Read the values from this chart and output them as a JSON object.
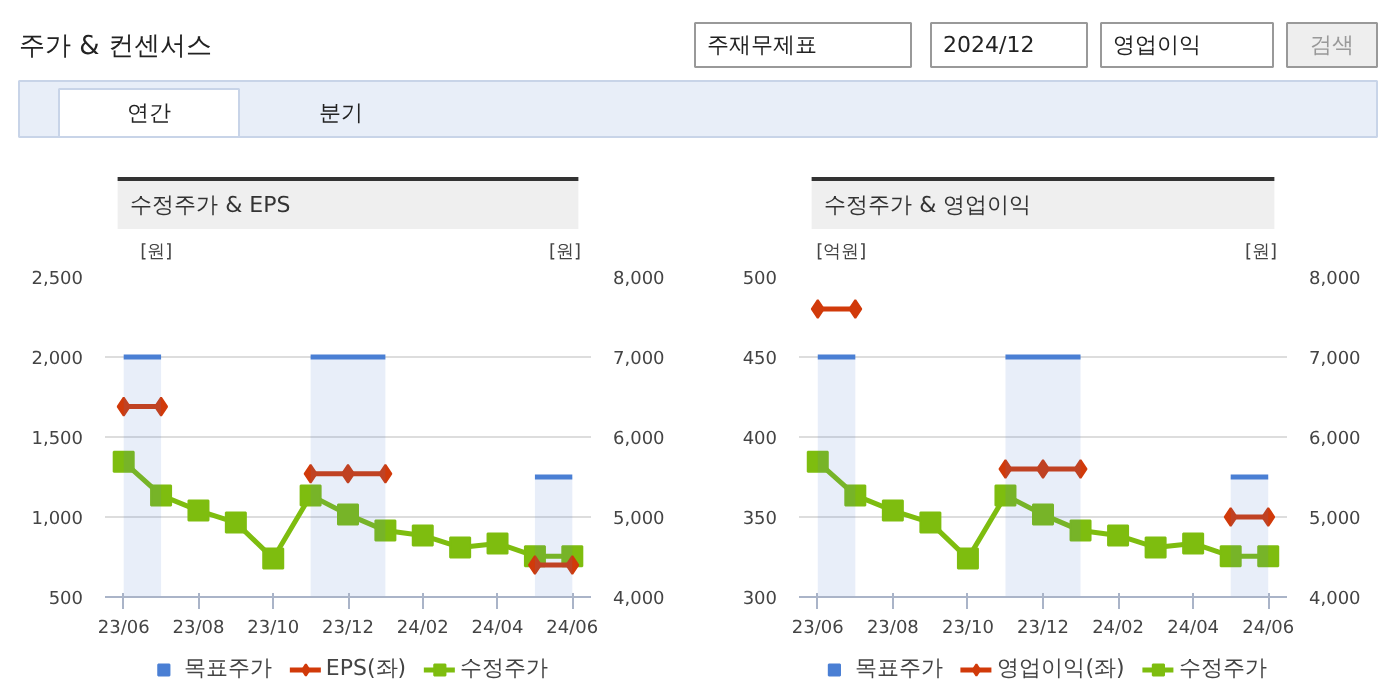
{
  "chart_data": [
    {
      "type": "other",
      "title": "주가 & 컨센서스",
      "annotations": [
        "주재무제표",
        "2024/12",
        "영업이익",
        "검색",
        "연간",
        "분기"
      ]
    },
    {
      "type": "line",
      "title": "수정주가 & EPS",
      "ylabel": "[원]",
      "y2label": "[원]",
      "categories": [
        "23/06",
        null,
        "23/08",
        null,
        "23/10",
        null,
        "23/12",
        null,
        "24/02",
        null,
        "24/04",
        null,
        "24/06"
      ],
      "ylim": [
        500,
        2500
      ],
      "yticks": [
        {
          "value": 500,
          "label": "500"
        },
        {
          "value": 1000,
          "label": "1,000"
        },
        {
          "value": 1500,
          "label": "1,500"
        },
        {
          "value": 2000,
          "label": "2,000"
        },
        {
          "value": 2500,
          "label": "2,500"
        }
      ],
      "y2lim": [
        4000,
        8000
      ],
      "y2ticks": [
        {
          "value": 4000,
          "label": "4,000"
        },
        {
          "value": 5000,
          "label": "5,000"
        },
        {
          "value": 6000,
          "label": "6,000"
        },
        {
          "value": 7000,
          "label": "7,000"
        },
        {
          "value": 8000,
          "label": "8,000"
        }
      ],
      "grid": "y",
      "legend": "bottom",
      "series": [
        {
          "name": "목표주가",
          "type": "area",
          "axis": "y2",
          "color": "#4a7fd4",
          "values": [
            7000,
            7000,
            null,
            null,
            null,
            7000,
            7000,
            7000,
            null,
            null,
            null,
            5500,
            5500
          ]
        },
        {
          "name": "EPS(좌)",
          "type": "line",
          "color": "#d13a0a",
          "marker": "diamond",
          "values": [
            1690,
            1690,
            null,
            null,
            null,
            1270,
            1270,
            1270,
            null,
            null,
            null,
            700,
            700
          ]
        },
        {
          "name": "수정주가",
          "type": "line",
          "axis": "y2",
          "color": "#7ebd0f",
          "marker": "square",
          "values": [
            5690,
            5270,
            5080,
            4930,
            4480,
            5270,
            5030,
            4830,
            4770,
            4620,
            4670,
            4510,
            4510
          ]
        }
      ]
    },
    {
      "type": "line",
      "title": "수정주가 & 영업이익",
      "ylabel": "[억원]",
      "y2label": "[원]",
      "categories": [
        "23/06",
        null,
        "23/08",
        null,
        "23/10",
        null,
        "23/12",
        null,
        "24/02",
        null,
        "24/04",
        null,
        "24/06"
      ],
      "ylim": [
        300,
        500
      ],
      "yticks": [
        300,
        350,
        400,
        450,
        500
      ],
      "y2lim": [
        4000,
        8000
      ],
      "y2ticks": [
        {
          "value": 4000,
          "label": "4,000"
        },
        {
          "value": 5000,
          "label": "5,000"
        },
        {
          "value": 6000,
          "label": "6,000"
        },
        {
          "value": 7000,
          "label": "7,000"
        },
        {
          "value": 8000,
          "label": "8,000"
        }
      ],
      "grid": "y",
      "legend": "bottom",
      "series": [
        {
          "name": "목표주가",
          "type": "area",
          "axis": "y2",
          "color": "#4a7fd4",
          "values": [
            7000,
            7000,
            null,
            null,
            null,
            7000,
            7000,
            7000,
            null,
            null,
            null,
            5500,
            5500
          ]
        },
        {
          "name": "영업이익(좌)",
          "type": "line",
          "color": "#d13a0a",
          "marker": "diamond",
          "values": [
            480,
            480,
            null,
            null,
            null,
            380,
            380,
            380,
            null,
            null,
            null,
            350,
            350
          ]
        },
        {
          "name": "수정주가",
          "type": "line",
          "axis": "y2",
          "color": "#7ebd0f",
          "marker": "square",
          "values": [
            5690,
            5270,
            5080,
            4930,
            4480,
            5270,
            5030,
            4830,
            4770,
            4620,
            4670,
            4510,
            4510
          ]
        }
      ]
    }
  ]
}
